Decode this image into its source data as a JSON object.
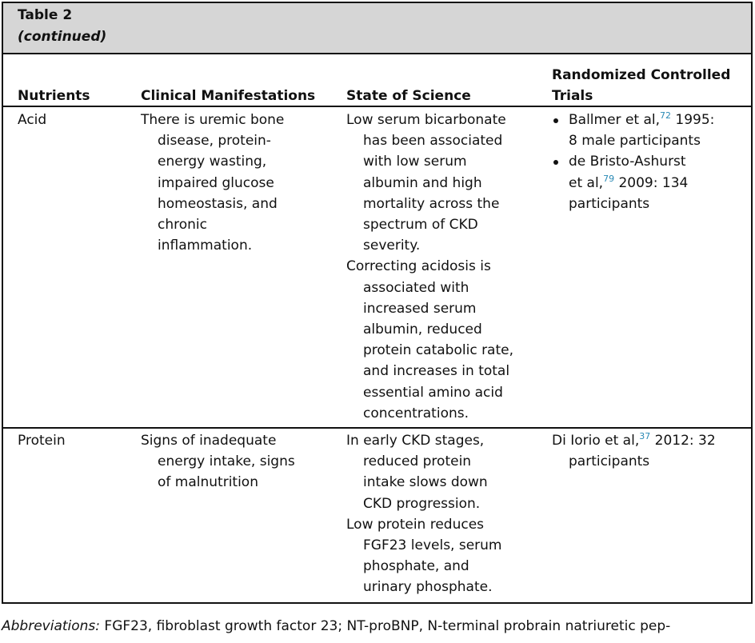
{
  "header": {
    "title": "Table 2",
    "subtitle": "(continued)"
  },
  "table": {
    "columns": [
      [
        "Nutrients"
      ],
      [
        "Clinical Manifestations"
      ],
      [
        "State of Science"
      ],
      [
        "Randomized Controlled",
        "Trials"
      ]
    ],
    "rows": [
      {
        "nutrient": "Acid",
        "clinical": [
          "There is uremic bone",
          "disease, protein-",
          "energy wasting,",
          "impaired glucose",
          "homeostasis, and",
          "chronic",
          "inflammation."
        ],
        "science": [
          [
            "Low serum bicarbonate",
            "has been associated",
            "with low serum",
            "albumin and high",
            "mortality across the",
            "spectrum of CKD",
            "severity."
          ],
          [
            "Correcting acidosis is",
            "associated with",
            "increased serum",
            "albumin, reduced",
            "protein catabolic rate,",
            "and increases in total",
            "essential amino acid",
            "concentrations."
          ]
        ],
        "trials": {
          "bulleted": true,
          "items": [
            [
              [
                "Ballmer et al,",
                {
                  "sup": "72"
                },
                " 1995:"
              ],
              [
                "8 male participants"
              ]
            ],
            [
              [
                "de Bristo-Ashurst"
              ],
              [
                "et al,",
                {
                  "sup": "79"
                },
                " 2009: 134"
              ],
              [
                "participants"
              ]
            ]
          ]
        }
      },
      {
        "nutrient": "Protein",
        "clinical": [
          "Signs of inadequate",
          "energy intake, signs",
          "of malnutrition"
        ],
        "science": [
          [
            "In early CKD stages,",
            "reduced protein",
            "intake slows down",
            "CKD progression."
          ],
          [
            "Low protein reduces",
            "FGF23 levels, serum",
            "phosphate, and",
            "urinary phosphate."
          ]
        ],
        "trials": {
          "bulleted": false,
          "items": [
            [
              [
                "Di Iorio et al,",
                {
                  "sup": "37"
                },
                " 2012: 32"
              ],
              [
                "participants"
              ]
            ]
          ]
        }
      }
    ]
  },
  "footer": {
    "label": "Abbreviations:",
    "text": " FGF23, fibroblast growth factor 23; NT-proBNP, N-terminal probrain natriuretic pep-"
  }
}
